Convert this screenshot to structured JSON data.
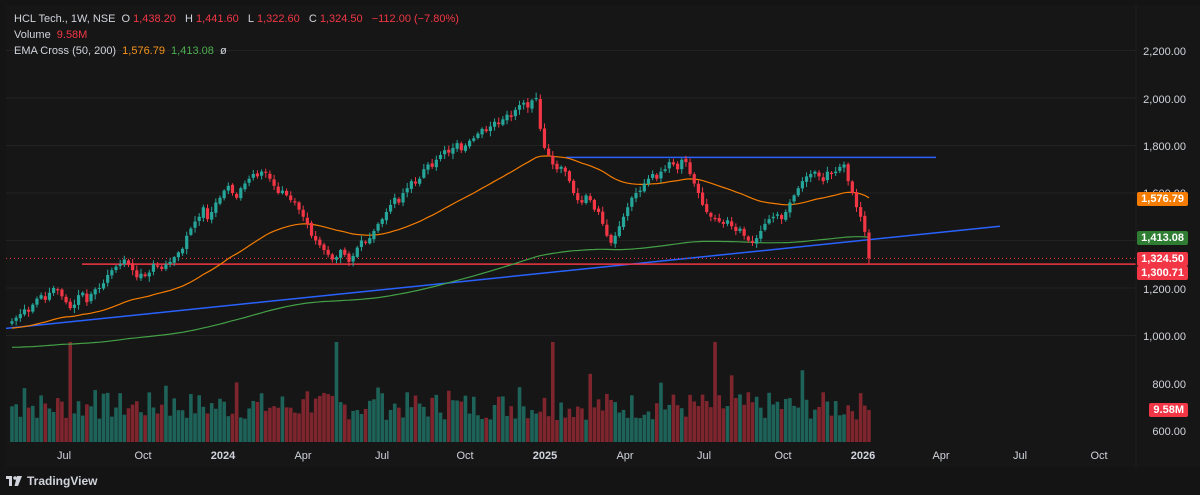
{
  "header": {
    "symbol": "HCL Tech., 1W, NSE",
    "o_label": "O",
    "o_value": "1,438.20",
    "h_label": "H",
    "h_value": "1,441.60",
    "l_label": "L",
    "l_value": "1,322.60",
    "c_label": "C",
    "c_value": "1,324.50",
    "change": "−112.00 (−7.80%)",
    "volume_label": "Volume",
    "volume_value": "9.58M",
    "ema_label": "EMA Cross (50, 200)",
    "ema50_value": "1,576.79",
    "ema200_value": "1,413.08",
    "ema_extra": "ø"
  },
  "price_tags": {
    "ema50": "1,576.79",
    "ema200": "1,413.08",
    "close": "1,324.50",
    "support": "1,300.71",
    "volume": "9.58M"
  },
  "colors": {
    "up": "#26a69a",
    "down": "#f23645",
    "ema50": "#f57c00",
    "ema200": "#43a047",
    "trendline": "#2962ff",
    "support_line": "#f23645",
    "background": "#161616",
    "text": "#d1d4dc"
  },
  "footer": {
    "brand": "TradingView"
  },
  "chart_data": {
    "type": "candlestick",
    "timeframe": "1W",
    "y_axis": {
      "ticks": [
        "2,200.00",
        "2,000.00",
        "1,800.00",
        "1,600.00",
        "1,200.00",
        "1,000.00",
        "800.00",
        "600.00"
      ],
      "price_range": [
        1000,
        2200
      ]
    },
    "x_axis": {
      "ticks": [
        "Jul",
        "Oct",
        "2024",
        "Apr",
        "Jul",
        "Oct",
        "2025",
        "Apr",
        "Jul",
        "Oct",
        "2026",
        "Apr",
        "Jul",
        "Oct"
      ],
      "bold": [
        false,
        false,
        true,
        false,
        false,
        false,
        true,
        false,
        false,
        false,
        true,
        false,
        false,
        false
      ]
    },
    "closes": [
      1060,
      1075,
      1090,
      1110,
      1100,
      1130,
      1155,
      1170,
      1150,
      1180,
      1200,
      1190,
      1165,
      1140,
      1115,
      1130,
      1170,
      1180,
      1140,
      1175,
      1195,
      1200,
      1220,
      1255,
      1275,
      1290,
      1300,
      1320,
      1300,
      1275,
      1245,
      1260,
      1250,
      1265,
      1300,
      1290,
      1280,
      1300,
      1310,
      1330,
      1350,
      1365,
      1420,
      1450,
      1480,
      1500,
      1540,
      1490,
      1520,
      1560,
      1580,
      1610,
      1630,
      1600,
      1580,
      1620,
      1640,
      1660,
      1680,
      1670,
      1690,
      1685,
      1660,
      1630,
      1600,
      1610,
      1590,
      1570,
      1560,
      1530,
      1500,
      1470,
      1420,
      1400,
      1380,
      1360,
      1340,
      1320,
      1330,
      1360,
      1340,
      1310,
      1335,
      1370,
      1400,
      1390,
      1410,
      1440,
      1470,
      1490,
      1520,
      1550,
      1580,
      1560,
      1600,
      1620,
      1650,
      1640,
      1660,
      1700,
      1720,
      1710,
      1740,
      1760,
      1780,
      1770,
      1790,
      1810,
      1780,
      1800,
      1820,
      1830,
      1850,
      1870,
      1860,
      1880,
      1900,
      1890,
      1910,
      1930,
      1920,
      1950,
      1970,
      1980,
      1960,
      1990,
      2000,
      1870,
      1790,
      1760,
      1720,
      1700,
      1710,
      1690,
      1650,
      1600,
      1570,
      1560,
      1590,
      1570,
      1530,
      1520,
      1470,
      1420,
      1390,
      1420,
      1460,
      1500,
      1540,
      1580,
      1600,
      1610,
      1640,
      1660,
      1680,
      1660,
      1690,
      1700,
      1730,
      1720,
      1700,
      1740,
      1730,
      1680,
      1640,
      1600,
      1550,
      1520,
      1500,
      1490,
      1480,
      1470,
      1485,
      1460,
      1440,
      1450,
      1420,
      1400,
      1390,
      1410,
      1440,
      1470,
      1490,
      1500,
      1510,
      1490,
      1520,
      1560,
      1590,
      1620,
      1650,
      1670,
      1680,
      1690,
      1670,
      1650,
      1690,
      1680,
      1690,
      1710,
      1720,
      1650,
      1600,
      1540,
      1500,
      1436.5,
      1324.5
    ],
    "ema50_value": 1576.79,
    "ema200_value": 1413.08,
    "support_level": 1300.71,
    "last_close": 1324.5,
    "last_volume": "9.58M",
    "series": [
      {
        "name": "HCL Tech., 1W, NSE"
      },
      {
        "name": "EMA Cross (50, 200)"
      },
      {
        "name": "Volume"
      }
    ]
  }
}
